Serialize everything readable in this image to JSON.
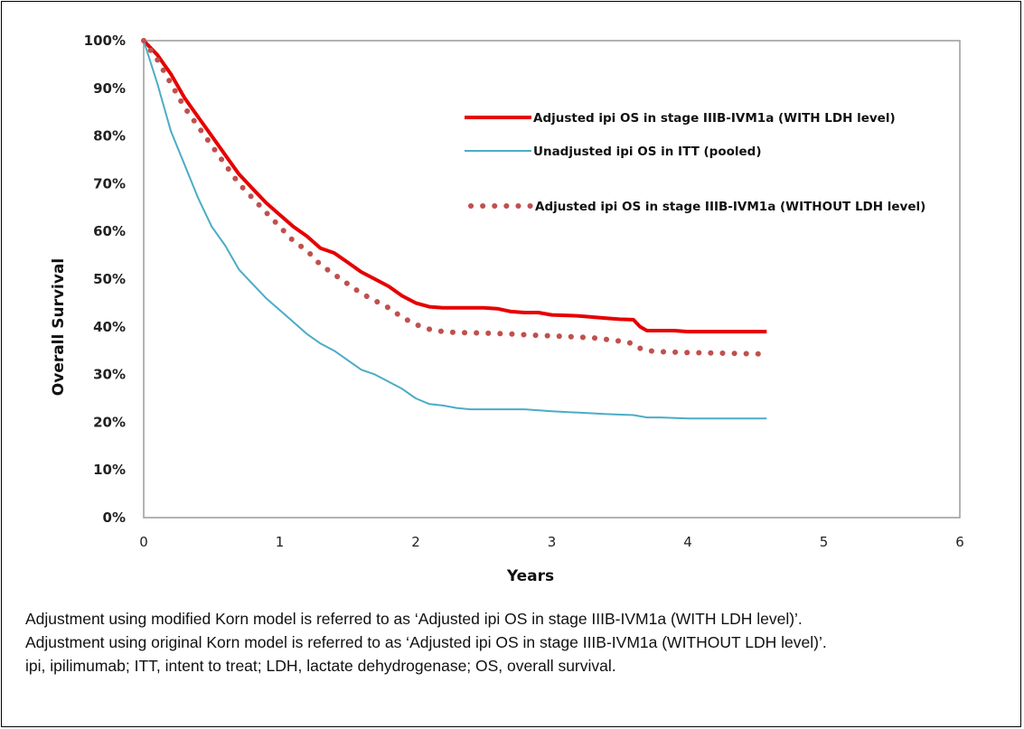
{
  "chart_data": {
    "type": "line",
    "xlabel": "Years",
    "ylabel": "Overall Survival",
    "xlim": [
      0,
      6
    ],
    "ylim": [
      0,
      100
    ],
    "x_ticks": [
      "0",
      "1",
      "2",
      "3",
      "4",
      "5",
      "6"
    ],
    "y_ticks": [
      "0%",
      "10%",
      "20%",
      "30%",
      "40%",
      "50%",
      "60%",
      "70%",
      "80%",
      "90%",
      "100%"
    ],
    "grid": false,
    "legend_position": "top-right",
    "series": [
      {
        "name": "Adjusted ipi OS in stage IIIB-IVM1a (WITH LDH level)",
        "color": "#e60000",
        "style": "solid-thick",
        "x": [
          0,
          0.1,
          0.2,
          0.3,
          0.4,
          0.5,
          0.6,
          0.7,
          0.8,
          0.9,
          1.0,
          1.1,
          1.2,
          1.3,
          1.4,
          1.5,
          1.6,
          1.7,
          1.8,
          1.9,
          2.0,
          2.1,
          2.2,
          2.3,
          2.5,
          2.6,
          2.7,
          2.8,
          2.9,
          3.0,
          3.2,
          3.4,
          3.5,
          3.6,
          3.65,
          3.7,
          3.8,
          3.9,
          4.0,
          4.2,
          4.4,
          4.58
        ],
        "y": [
          100,
          97,
          93,
          88,
          84,
          80,
          76,
          72,
          69,
          66,
          63.5,
          61,
          59,
          56.5,
          55.5,
          53.5,
          51.5,
          50,
          48.5,
          46.5,
          45,
          44.2,
          44,
          44,
          44,
          43.8,
          43.2,
          43,
          43,
          42.5,
          42.3,
          41.8,
          41.6,
          41.5,
          40,
          39.2,
          39.2,
          39.2,
          39.0,
          39.0,
          39.0,
          39.0
        ]
      },
      {
        "name": "Unadjusted ipi OS in ITT (pooled)",
        "color": "#4bacc6",
        "style": "solid-thin",
        "x": [
          0,
          0.1,
          0.2,
          0.3,
          0.4,
          0.5,
          0.6,
          0.7,
          0.8,
          0.9,
          1.0,
          1.1,
          1.2,
          1.3,
          1.4,
          1.5,
          1.6,
          1.7,
          1.8,
          1.9,
          2.0,
          2.1,
          2.2,
          2.3,
          2.4,
          2.6,
          2.8,
          3.0,
          3.2,
          3.4,
          3.6,
          3.7,
          3.8,
          4.0,
          4.2,
          4.4,
          4.58
        ],
        "y": [
          100,
          91,
          81,
          74,
          67,
          61,
          57,
          52,
          49,
          46,
          43.5,
          41,
          38.5,
          36.5,
          35,
          33,
          31,
          30,
          28.5,
          27,
          25,
          23.8,
          23.5,
          23,
          22.7,
          22.7,
          22.7,
          22.3,
          22,
          21.7,
          21.5,
          21.0,
          21.0,
          20.8,
          20.8,
          20.8,
          20.8
        ]
      },
      {
        "name": "Adjusted ipi OS in stage IIIB-IVM1a (WITHOUT LDH level)",
        "color": "#c0504d",
        "style": "dotted",
        "x": [
          0,
          0.1,
          0.2,
          0.3,
          0.4,
          0.5,
          0.6,
          0.7,
          0.8,
          0.9,
          1.0,
          1.1,
          1.2,
          1.3,
          1.4,
          1.5,
          1.6,
          1.7,
          1.8,
          1.9,
          2.0,
          2.1,
          2.2,
          2.3,
          2.5,
          2.7,
          2.9,
          3.1,
          3.3,
          3.5,
          3.6,
          3.65,
          3.7,
          3.8,
          4.0,
          4.2,
          4.4,
          4.58
        ],
        "y": [
          100,
          96,
          91,
          86,
          82,
          78,
          74,
          70,
          67,
          64,
          61,
          58,
          56,
          53,
          51,
          49,
          47,
          45.5,
          44,
          42,
          40.5,
          39.5,
          39,
          38.8,
          38.7,
          38.5,
          38.2,
          38.0,
          37.7,
          37.0,
          36.5,
          35.5,
          35.0,
          34.8,
          34.6,
          34.5,
          34.4,
          34.3
        ]
      }
    ]
  },
  "caption": {
    "line1": "Adjustment using modified Korn model is referred to as ‘Adjusted ipi OS in stage IIIB-IVM1a (WITH LDH level)’.",
    "line2": "Adjustment using original Korn model is referred to as ‘Adjusted ipi OS in stage IIIB-IVM1a (WITHOUT LDH level)’.",
    "line3": "ipi, ipilimumab; ITT, intent to treat; LDH, lactate dehydrogenase; OS, overall survival."
  }
}
